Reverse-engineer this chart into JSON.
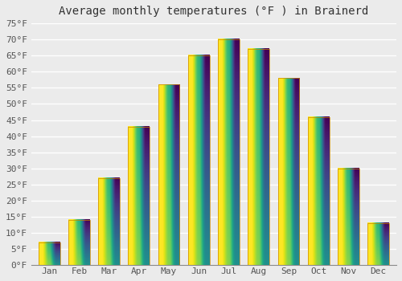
{
  "title": "Average monthly temperatures (°F ) in Brainerd",
  "months": [
    "Jan",
    "Feb",
    "Mar",
    "Apr",
    "May",
    "Jun",
    "Jul",
    "Aug",
    "Sep",
    "Oct",
    "Nov",
    "Dec"
  ],
  "values": [
    7,
    14,
    27,
    43,
    56,
    65,
    70,
    67,
    58,
    46,
    30,
    13
  ],
  "bar_color": "#FFA500",
  "bar_color_light": "#FFD080",
  "ylim": [
    0,
    75
  ],
  "yticks": [
    0,
    5,
    10,
    15,
    20,
    25,
    30,
    35,
    40,
    45,
    50,
    55,
    60,
    65,
    70,
    75
  ],
  "ytick_labels": [
    "0°F",
    "5°F",
    "10°F",
    "15°F",
    "20°F",
    "25°F",
    "30°F",
    "35°F",
    "40°F",
    "45°F",
    "50°F",
    "55°F",
    "60°F",
    "65°F",
    "70°F",
    "75°F"
  ],
  "background_color": "#ebebeb",
  "grid_color": "#ffffff",
  "title_fontsize": 10,
  "tick_fontsize": 8,
  "font_family": "monospace",
  "bar_edge_color": "#cc8800",
  "bar_edge_width": 0.5
}
